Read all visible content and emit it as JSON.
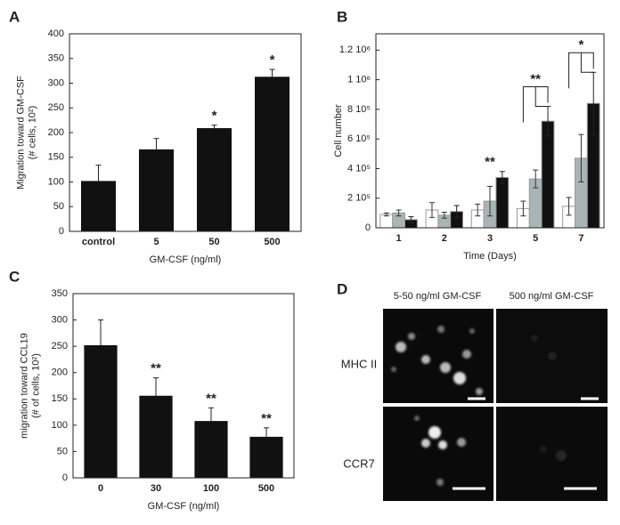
{
  "chart_data": [
    {
      "type": "bar",
      "panel_label": "A",
      "ylabel": [
        "Migration toward GM-CSF",
        "(# cells, 10²)"
      ],
      "xlabel": "GM-CSF (ng/ml)",
      "categories": [
        "control",
        "5",
        "50",
        "500"
      ],
      "values": [
        102,
        166,
        209,
        313
      ],
      "errors": [
        32,
        22,
        6,
        15
      ],
      "color": "#111111",
      "error_bars": "up",
      "significance": [
        null,
        null,
        "*",
        "*"
      ],
      "ylim": [
        0,
        400
      ],
      "yticks": [
        0,
        50,
        100,
        150,
        200,
        250,
        300,
        350,
        400
      ]
    },
    {
      "type": "bar",
      "panel_label": "B",
      "ylabel": [
        "Cell number"
      ],
      "xlabel": "Time (Days)",
      "categories": [
        "1",
        "2",
        "3",
        "5",
        "7"
      ],
      "error_bars": "both",
      "series": [
        {
          "color": "#ffffff",
          "values": [
            90000,
            120000,
            120000,
            130000,
            145000
          ],
          "errors": [
            10000,
            50000,
            40000,
            50000,
            60000
          ]
        },
        {
          "color": "#a9b5b5",
          "values": [
            100000,
            85000,
            180000,
            330000,
            470000
          ],
          "errors": [
            20000,
            20000,
            100000,
            60000,
            160000
          ]
        },
        {
          "color": "#111111",
          "values": [
            55000,
            110000,
            340000,
            720000,
            840000
          ],
          "errors": [
            20000,
            40000,
            40000,
            100000,
            210000
          ]
        }
      ],
      "significance": [
        null,
        null,
        "**",
        "**",
        "*"
      ],
      "significance_brackets": [
        3,
        4
      ],
      "ylim": [
        0,
        1310000
      ],
      "yticks": [
        0,
        {
          "value": 200000,
          "label": "2 10⁵"
        },
        {
          "value": 400000,
          "label": "4 10⁵"
        },
        {
          "value": 600000,
          "label": "6 10⁵"
        },
        {
          "value": 800000,
          "label": "8 10⁵"
        },
        {
          "value": 1000000,
          "label": "1 10⁶"
        },
        {
          "value": 1200000,
          "label": "1.2 10⁶"
        }
      ]
    },
    {
      "type": "bar",
      "panel_label": "C",
      "ylabel": [
        "migration toward CCL19",
        "(# of cells, 10²)"
      ],
      "xlabel": "GM-CSF (ng/ml)",
      "categories": [
        "0",
        "30",
        "100",
        "500"
      ],
      "values": [
        252,
        156,
        108,
        78
      ],
      "errors": [
        48,
        34,
        25,
        17
      ],
      "color": "#111111",
      "error_bars": "up",
      "significance": [
        null,
        "**",
        "**",
        "**"
      ],
      "ylim": [
        0,
        350
      ],
      "yticks": [
        0,
        50,
        100,
        150,
        200,
        250,
        300,
        350
      ]
    }
  ],
  "panel_d": {
    "panel_label": "D",
    "columns": [
      "5-50 ng/ml GM-CSF",
      "500 ng/ml GM-CSF"
    ],
    "rows": [
      "MHC II",
      "CCR7"
    ]
  }
}
